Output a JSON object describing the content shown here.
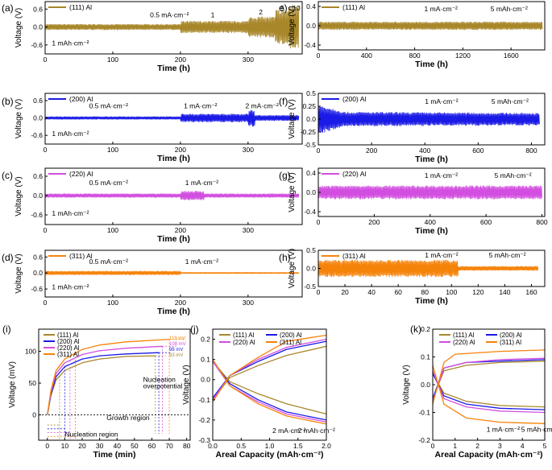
{
  "colors": {
    "al111": "#a8872a",
    "al200": "#1a1ae6",
    "al220": "#d24ee0",
    "al311": "#f5830a"
  },
  "chart_data": [
    {
      "id": "a",
      "panel_label": "(a)",
      "type": "line",
      "legend": "(111) Al",
      "color_key": "al111",
      "xlabel": "Time (h)",
      "ylabel": "Voltage (V)",
      "xlim": [
        0,
        380
      ],
      "ylim": [
        -0.9,
        0.85
      ],
      "xticks": [
        0,
        100,
        200,
        300
      ],
      "yticks": [
        0.6,
        0.0,
        -0.6
      ],
      "ytick_labels": [
        "0.6",
        "0.0",
        "-0.6"
      ],
      "annotations": [
        {
          "text": "0.5  mA·cm⁻²",
          "x": 155,
          "y": 0.33
        },
        {
          "text": "1",
          "x": 245,
          "y": 0.33
        },
        {
          "text": "2",
          "x": 316,
          "y": 0.42
        },
        {
          "text": "5",
          "x": 348,
          "y": 0.55
        },
        {
          "text": "10",
          "x": 366,
          "y": 0.55
        },
        {
          "text": "1 mAh·cm⁻²",
          "x": 10,
          "y": -0.62
        }
      ],
      "series": [
        {
          "name": "(111) Al",
          "x": [
            0,
            200,
            200,
            300,
            300,
            340,
            340,
            360,
            360,
            375
          ],
          "y": [
            0.08,
            0.08,
            0.17,
            0.17,
            0.3,
            0.3,
            0.5,
            0.5,
            0.65,
            0.65
          ],
          "oscillation": true
        }
      ]
    },
    {
      "id": "b",
      "panel_label": "(b)",
      "type": "line",
      "legend": "(200) Al",
      "color_key": "al200",
      "xlabel": "Time (h)",
      "ylabel": "Voltage (V)",
      "xlim": [
        0,
        380
      ],
      "ylim": [
        -0.9,
        0.85
      ],
      "xticks": [
        0,
        100,
        200,
        300
      ],
      "yticks": [
        0.6,
        0.0,
        -0.6
      ],
      "ytick_labels": [
        "0.6",
        "0.0",
        "-0.6"
      ],
      "annotations": [
        {
          "text": "0.5 mA·cm⁻²",
          "x": 65,
          "y": 0.33
        },
        {
          "text": "1 mA·cm⁻²",
          "x": 205,
          "y": 0.33
        },
        {
          "text": "2  mA·cm⁻²",
          "x": 296,
          "y": 0.33
        },
        {
          "text": "1 mAh·cm⁻²",
          "x": 10,
          "y": -0.62
        }
      ],
      "series": [
        {
          "name": "(200) Al",
          "x": [
            0,
            200,
            200,
            300,
            300,
            310,
            310,
            375
          ],
          "y": [
            0.04,
            0.04,
            0.12,
            0.12,
            0.25,
            0.25,
            0.08,
            0.08
          ],
          "oscillation": true
        }
      ]
    },
    {
      "id": "c",
      "panel_label": "(c)",
      "type": "line",
      "legend": "(220) Al",
      "color_key": "al220",
      "xlabel": "Time (h)",
      "ylabel": "Voltage (V)",
      "xlim": [
        0,
        380
      ],
      "ylim": [
        -0.9,
        0.85
      ],
      "xticks": [
        0,
        100,
        200,
        300
      ],
      "yticks": [
        0.6,
        0.0,
        -0.6
      ],
      "ytick_labels": [
        "0.6",
        "0.0",
        "-0.6"
      ],
      "annotations": [
        {
          "text": "0.5 mA·cm⁻²",
          "x": 65,
          "y": 0.33
        },
        {
          "text": "1 mA·cm⁻²",
          "x": 207,
          "y": 0.33
        },
        {
          "text": "1 mAh·cm⁻²",
          "x": 10,
          "y": -0.62
        }
      ],
      "series": [
        {
          "name": "(220) Al",
          "x": [
            0,
            200,
            200,
            235,
            235,
            375
          ],
          "y": [
            0.05,
            0.05,
            0.12,
            0.12,
            0.05,
            0.05
          ],
          "oscillation": true
        }
      ]
    },
    {
      "id": "d",
      "panel_label": "(d)",
      "type": "line",
      "legend": "(311) Al",
      "color_key": "al311",
      "xlabel": "Time (h)",
      "ylabel": "Voltage (V)",
      "xlim": [
        0,
        380
      ],
      "ylim": [
        -0.9,
        0.85
      ],
      "xticks": [
        0,
        100,
        200,
        300
      ],
      "yticks": [
        0.6,
        0.0,
        -0.6
      ],
      "ytick_labels": [
        "0.6",
        "0.0",
        "-0.6"
      ],
      "annotations": [
        {
          "text": "0.5 mA·cm⁻²",
          "x": 65,
          "y": 0.33
        },
        {
          "text": "1 mA·cm⁻²",
          "x": 207,
          "y": 0.33
        },
        {
          "text": "1 mAh·cm⁻²",
          "x": 10,
          "y": -0.62
        }
      ],
      "series": [
        {
          "name": "(311) Al",
          "x": [
            0,
            200,
            200,
            375
          ],
          "y": [
            0.06,
            0.06,
            0.02,
            0.02
          ],
          "oscillation": true
        }
      ]
    },
    {
      "id": "e",
      "panel_label": "e)",
      "type": "line",
      "legend": "(111) Al",
      "color_key": "al111",
      "xlabel": "Time (h)",
      "ylabel": "Voltage (V)",
      "xlim": [
        0,
        1880
      ],
      "ylim": [
        -0.5,
        0.5
      ],
      "xticks": [
        0,
        400,
        800,
        1200,
        1600
      ],
      "yticks": [
        0.4,
        0.0,
        -0.4
      ],
      "ytick_labels": [
        "0.4",
        "0.0",
        "-0.4"
      ],
      "annotations": [
        {
          "text": "1 mA·cm⁻²",
          "x": 880,
          "y": 0.3
        },
        {
          "text": "5 mAh·cm⁻²",
          "x": 1430,
          "y": 0.3
        }
      ],
      "series": [
        {
          "name": "(111) Al",
          "x": [
            0,
            1860
          ],
          "y": [
            0.07,
            0.07
          ],
          "oscillation": true
        }
      ]
    },
    {
      "id": "f",
      "panel_label": "(f)",
      "type": "line",
      "legend": "(200) Al",
      "color_key": "al200",
      "xlabel": "Time (h)",
      "ylabel": "Voltage (V)",
      "xlim": [
        0,
        850
      ],
      "ylim": [
        -0.5,
        0.5
      ],
      "xticks": [
        0,
        200,
        400,
        600,
        800
      ],
      "yticks": [
        0.5,
        0.25,
        0.0,
        -0.25,
        -0.5
      ],
      "ytick_labels": [
        "0.5",
        "0.25",
        "0.0",
        "-0.25",
        "-0.5"
      ],
      "annotations": [
        {
          "text": "1 mA·cm⁻²",
          "x": 400,
          "y": 0.3
        },
        {
          "text": "5 mAh·cm⁻²",
          "x": 650,
          "y": 0.3
        }
      ],
      "series": [
        {
          "name": "(200) Al",
          "x": [
            0,
            100,
            830
          ],
          "y": [
            0.25,
            0.12,
            0.1
          ],
          "oscillation": true
        }
      ]
    },
    {
      "id": "g",
      "panel_label": "(g)",
      "type": "line",
      "legend": "(220) Al",
      "color_key": "al220",
      "xlabel": "Time (h)",
      "ylabel": "Voltage (V)",
      "xlim": [
        0,
        810
      ],
      "ylim": [
        -0.5,
        0.5
      ],
      "xticks": [
        0,
        200,
        400,
        600,
        800
      ],
      "yticks": [
        0.4,
        0.0,
        -0.4
      ],
      "ytick_labels": [
        "0.4",
        "0.0",
        "-0.4"
      ],
      "annotations": [
        {
          "text": "1 mA·cm⁻²",
          "x": 380,
          "y": 0.3
        },
        {
          "text": "5 mAh·cm⁻²",
          "x": 630,
          "y": 0.3
        }
      ],
      "series": [
        {
          "name": "(220) Al",
          "x": [
            0,
            800
          ],
          "y": [
            0.12,
            0.12
          ],
          "oscillation": true
        }
      ]
    },
    {
      "id": "h",
      "panel_label": "(h)",
      "type": "line",
      "legend": "(311) Al",
      "color_key": "al311",
      "xlabel": "Time (h)",
      "ylabel": "Voltage (V)",
      "xlim": [
        0,
        170
      ],
      "ylim": [
        -0.5,
        0.5
      ],
      "xticks": [
        0,
        20,
        40,
        60,
        80,
        100,
        120,
        140,
        160
      ],
      "yticks": [
        0.5,
        0.0,
        -0.5
      ],
      "ytick_labels": [
        "0.5",
        "0.0",
        "-0.5"
      ],
      "annotations": [
        {
          "text": "1 mA·cm⁻²",
          "x": 80,
          "y": 0.3
        },
        {
          "text": "5 mAh·cm⁻²",
          "x": 128,
          "y": 0.3
        }
      ],
      "series": [
        {
          "name": "(311) Al",
          "x": [
            0,
            105,
            105,
            165
          ],
          "y": [
            0.2,
            0.2,
            0.05,
            0.05
          ],
          "oscillation": true
        }
      ]
    },
    {
      "id": "i",
      "panel_label": "(i)",
      "type": "line",
      "xlabel": "Time (min)",
      "ylabel": "Voltage (mV)",
      "xlim": [
        -5,
        82
      ],
      "ylim": [
        -40,
        135
      ],
      "xticks": [
        0,
        10,
        20,
        30,
        40,
        50,
        60,
        70,
        80
      ],
      "yticks": [
        0,
        50,
        100
      ],
      "legend_entries": [
        "(111) Al",
        "(200) Al",
        "(220) Al",
        "(311) Al"
      ],
      "value_labels": [
        "119 mV",
        "108 mV",
        "98 mV",
        "93 mV"
      ],
      "annotations": [
        {
          "text": "Nucleation",
          "x": 55,
          "y": 52
        },
        {
          "text": "overpotential",
          "x": 55,
          "y": 42
        },
        {
          "text": "Growth region",
          "x": 34,
          "y": -8
        },
        {
          "text": "Nucleation region",
          "x": 10,
          "y": -34
        }
      ],
      "series": [
        {
          "name": "(111) Al",
          "color_key": "al111",
          "x": [
            0,
            2,
            5,
            10,
            20,
            30,
            45,
            62
          ],
          "y": [
            0,
            30,
            55,
            70,
            82,
            88,
            92,
            93
          ]
        },
        {
          "name": "(200) Al",
          "color_key": "al200",
          "x": [
            0,
            2,
            5,
            10,
            20,
            30,
            45,
            64
          ],
          "y": [
            0,
            32,
            60,
            76,
            88,
            93,
            96,
            98
          ]
        },
        {
          "name": "(220) Al",
          "color_key": "al220",
          "x": [
            0,
            2,
            5,
            10,
            20,
            30,
            45,
            66
          ],
          "y": [
            0,
            35,
            65,
            82,
            95,
            101,
            105,
            108
          ]
        },
        {
          "name": "(311) Al",
          "color_key": "al311",
          "x": [
            0,
            2,
            5,
            10,
            20,
            30,
            45,
            70
          ],
          "y": [
            0,
            38,
            70,
            88,
            103,
            110,
            115,
            119
          ]
        }
      ]
    },
    {
      "id": "j",
      "panel_label": "(j)",
      "type": "line",
      "xlabel": "Areal Capacity (mAh·cm⁻²)",
      "ylabel": "Voltage (V)",
      "xlim": [
        0,
        2.0
      ],
      "ylim": [
        -0.3,
        0.25
      ],
      "xticks": [
        0.0,
        0.5,
        1.0,
        1.5,
        2.0
      ],
      "yticks": [
        0.2,
        0.1,
        0.0,
        -0.1,
        -0.2,
        -0.3
      ],
      "xtick_labels": [
        "0.0",
        "0.5",
        "1.0",
        "1.5",
        "2.0"
      ],
      "ytick_labels": [
        "0.2",
        "0.1",
        "0.0",
        "-0.1",
        "-0.2",
        "-0.3"
      ],
      "legend_entries": [
        "(111) Al",
        "(200) Al",
        "(220) Al",
        "(311) Al"
      ],
      "annotations": [
        {
          "text": "2 mA·cm⁻²",
          "x": 1.05,
          "y": -0.265
        },
        {
          "text": "2 mAh·cm⁻²",
          "x": 1.5,
          "y": -0.265
        }
      ],
      "series": [
        {
          "name": "(111) Al charge",
          "color_key": "al111",
          "x": [
            0,
            0.3,
            0.8,
            1.3,
            2.0
          ],
          "y": [
            -0.1,
            0.01,
            0.07,
            0.12,
            0.165
          ]
        },
        {
          "name": "(111) Al discharge",
          "color_key": "al111",
          "x": [
            0,
            0.3,
            0.8,
            1.3,
            2.0
          ],
          "y": [
            0.09,
            -0.01,
            -0.07,
            -0.12,
            -0.17
          ]
        },
        {
          "name": "(200) Al charge",
          "color_key": "al200",
          "x": [
            0,
            0.3,
            0.8,
            1.3,
            2.0
          ],
          "y": [
            -0.09,
            0.02,
            0.09,
            0.15,
            0.19
          ]
        },
        {
          "name": "(200) Al discharge",
          "color_key": "al200",
          "x": [
            0,
            0.3,
            0.8,
            1.3,
            2.0
          ],
          "y": [
            0.09,
            -0.02,
            -0.1,
            -0.16,
            -0.2
          ]
        },
        {
          "name": "(220) Al charge",
          "color_key": "al220",
          "x": [
            0,
            0.3,
            0.8,
            1.3,
            2.0
          ],
          "y": [
            -0.1,
            0.02,
            0.1,
            0.16,
            0.2
          ]
        },
        {
          "name": "(220) Al discharge",
          "color_key": "al220",
          "x": [
            0,
            0.3,
            0.8,
            1.3,
            2.0
          ],
          "y": [
            0.09,
            -0.03,
            -0.11,
            -0.17,
            -0.21
          ]
        },
        {
          "name": "(311) Al charge",
          "color_key": "al311",
          "x": [
            0,
            0.3,
            0.8,
            1.3,
            2.0
          ],
          "y": [
            -0.11,
            0.02,
            0.11,
            0.19,
            0.22
          ]
        },
        {
          "name": "(311) Al discharge",
          "color_key": "al311",
          "x": [
            0,
            0.3,
            0.8,
            1.3,
            2.0
          ],
          "y": [
            0.1,
            -0.03,
            -0.12,
            -0.18,
            -0.22
          ]
        }
      ]
    },
    {
      "id": "k",
      "panel_label": "(k)",
      "type": "line",
      "xlabel": "Areal Capacity (mAh·cm⁻²)",
      "ylabel": "Voltage (V)",
      "xlim": [
        0,
        5
      ],
      "ylim": [
        -0.2,
        0.2
      ],
      "xticks": [
        0,
        1,
        2,
        3,
        4,
        5
      ],
      "yticks": [
        0.2,
        0.1,
        0.0,
        -0.1,
        -0.2
      ],
      "ytick_labels": [
        "0.2",
        "0.1",
        "0.0",
        "-0.1",
        "-0.2"
      ],
      "legend_entries": [
        "(111) Al",
        "(200) Al",
        "(220) Al",
        "(311) Al"
      ],
      "annotations": [
        {
          "text": "1 mA·cm⁻²",
          "x": 2.4,
          "y": -0.17
        },
        {
          "text": "5 mAh·cm⁻²",
          "x": 3.95,
          "y": -0.17
        }
      ],
      "series": [
        {
          "name": "(111) Al charge",
          "color_key": "al111",
          "x": [
            0,
            0.5,
            1.5,
            3,
            5
          ],
          "y": [
            -0.05,
            0.05,
            0.07,
            0.08,
            0.085
          ]
        },
        {
          "name": "(111) Al discharge",
          "color_key": "al111",
          "x": [
            0,
            0.5,
            1.5,
            3,
            5
          ],
          "y": [
            0.04,
            -0.03,
            -0.06,
            -0.075,
            -0.08
          ]
        },
        {
          "name": "(200) Al charge",
          "color_key": "al200",
          "x": [
            0,
            0.5,
            1.5,
            3,
            5
          ],
          "y": [
            -0.05,
            0.06,
            0.08,
            0.085,
            0.09
          ]
        },
        {
          "name": "(200) Al discharge",
          "color_key": "al200",
          "x": [
            0,
            0.5,
            1.5,
            3,
            5
          ],
          "y": [
            0.04,
            -0.04,
            -0.07,
            -0.085,
            -0.09
          ]
        },
        {
          "name": "(220) Al charge",
          "color_key": "al220",
          "x": [
            0,
            0.5,
            1.5,
            3,
            5
          ],
          "y": [
            -0.06,
            0.06,
            0.08,
            0.09,
            0.095
          ]
        },
        {
          "name": "(220) Al discharge",
          "color_key": "al220",
          "x": [
            0,
            0.5,
            1.5,
            3,
            5
          ],
          "y": [
            0.05,
            -0.05,
            -0.08,
            -0.095,
            -0.1
          ]
        },
        {
          "name": "(311) Al charge",
          "color_key": "al311",
          "x": [
            0,
            0.5,
            1.0,
            3,
            5
          ],
          "y": [
            -0.07,
            0.08,
            0.11,
            0.12,
            0.125
          ]
        },
        {
          "name": "(311) Al discharge",
          "color_key": "al311",
          "x": [
            0,
            0.5,
            1.5,
            3,
            5
          ],
          "y": [
            0.07,
            -0.07,
            -0.12,
            -0.135,
            -0.14
          ]
        }
      ]
    }
  ]
}
